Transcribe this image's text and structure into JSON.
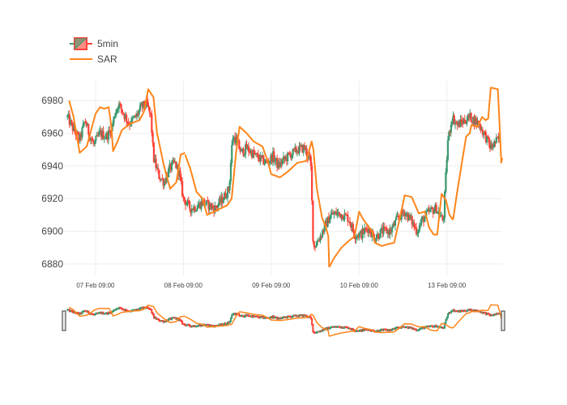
{
  "chart_data": {
    "type": "candlestick",
    "legend": [
      {
        "name": "5min",
        "kind": "candlestick",
        "color_up": "#3d9970",
        "color_down": "#ff4136"
      },
      {
        "name": "SAR",
        "kind": "line",
        "color": "#ff851b"
      }
    ],
    "legend_position": "top-left",
    "y_ticks": [
      6880,
      6900,
      6920,
      6940,
      6960,
      6980
    ],
    "ylim": [
      6873,
      6992
    ],
    "x_ticks": [
      {
        "day": 1,
        "label": "07 Feb 09:00"
      },
      {
        "day": 2,
        "label": "08 Feb 09:00"
      },
      {
        "day": 3,
        "label": "09 Feb 09:00"
      },
      {
        "day": 4,
        "label": "10 Feb 09:00"
      },
      {
        "day": 5,
        "label": "13 Feb 09:00"
      }
    ],
    "xlim_days": [
      0.65,
      5.63
    ],
    "grid": true,
    "range_slider": true,
    "price_keypoints": [
      [
        0.68,
        6970
      ],
      [
        0.75,
        6962
      ],
      [
        0.82,
        6956
      ],
      [
        0.88,
        6968
      ],
      [
        0.93,
        6959
      ],
      [
        0.98,
        6953
      ],
      [
        1.05,
        6960
      ],
      [
        1.12,
        6958
      ],
      [
        1.18,
        6962
      ],
      [
        1.22,
        6972
      ],
      [
        1.26,
        6978
      ],
      [
        1.3,
        6974
      ],
      [
        1.38,
        6966
      ],
      [
        1.46,
        6970
      ],
      [
        1.52,
        6976
      ],
      [
        1.58,
        6978
      ],
      [
        1.63,
        6970
      ],
      [
        1.66,
        6945
      ],
      [
        1.72,
        6934
      ],
      [
        1.78,
        6930
      ],
      [
        1.84,
        6938
      ],
      [
        1.9,
        6942
      ],
      [
        1.95,
        6936
      ],
      [
        2.0,
        6920
      ],
      [
        2.08,
        6914
      ],
      [
        2.15,
        6915
      ],
      [
        2.22,
        6918
      ],
      [
        2.28,
        6916
      ],
      [
        2.36,
        6914
      ],
      [
        2.45,
        6920
      ],
      [
        2.52,
        6926
      ],
      [
        2.56,
        6958
      ],
      [
        2.6,
        6956
      ],
      [
        2.66,
        6948
      ],
      [
        2.72,
        6951
      ],
      [
        2.8,
        6947
      ],
      [
        2.88,
        6944
      ],
      [
        2.95,
        6942
      ],
      [
        3.02,
        6946
      ],
      [
        3.08,
        6940
      ],
      [
        3.15,
        6944
      ],
      [
        3.22,
        6947
      ],
      [
        3.3,
        6950
      ],
      [
        3.38,
        6951
      ],
      [
        3.45,
        6942
      ],
      [
        3.48,
        6890
      ],
      [
        3.55,
        6896
      ],
      [
        3.62,
        6904
      ],
      [
        3.68,
        6910
      ],
      [
        3.75,
        6911
      ],
      [
        3.82,
        6910
      ],
      [
        3.88,
        6908
      ],
      [
        3.95,
        6898
      ],
      [
        4.02,
        6898
      ],
      [
        4.1,
        6902
      ],
      [
        4.18,
        6896
      ],
      [
        4.26,
        6900
      ],
      [
        4.36,
        6900
      ],
      [
        4.44,
        6908
      ],
      [
        4.52,
        6912
      ],
      [
        4.6,
        6906
      ],
      [
        4.66,
        6900
      ],
      [
        4.72,
        6907
      ],
      [
        4.8,
        6912
      ],
      [
        4.88,
        6914
      ],
      [
        4.96,
        6906
      ],
      [
        5.01,
        6955
      ],
      [
        5.06,
        6970
      ],
      [
        5.12,
        6965
      ],
      [
        5.18,
        6967
      ],
      [
        5.26,
        6970
      ],
      [
        5.36,
        6966
      ],
      [
        5.44,
        6958
      ],
      [
        5.5,
        6951
      ],
      [
        5.56,
        6955
      ],
      [
        5.61,
        6957
      ]
    ],
    "sar_segments": [
      [
        [
          0.7,
          6980
        ],
        [
          0.75,
          6970
        ],
        [
          0.82,
          6948
        ],
        [
          0.9,
          6952
        ],
        [
          1.0,
          6972
        ],
        [
          1.05,
          6976
        ],
        [
          1.1,
          6975
        ],
        [
          1.15,
          6976
        ],
        [
          1.18,
          6964
        ],
        [
          1.2,
          6949
        ],
        [
          1.25,
          6955
        ],
        [
          1.3,
          6962
        ],
        [
          1.4,
          6966
        ],
        [
          1.5,
          6968
        ],
        [
          1.55,
          6973
        ],
        [
          1.6,
          6987
        ],
        [
          1.66,
          6982
        ],
        [
          1.7,
          6960
        ],
        [
          1.78,
          6940
        ],
        [
          1.85,
          6926
        ],
        [
          1.92,
          6930
        ],
        [
          1.97,
          6947
        ],
        [
          2.02,
          6948
        ]
      ],
      [
        [
          2.02,
          6947
        ],
        [
          2.08,
          6938
        ],
        [
          2.15,
          6924
        ],
        [
          2.22,
          6920
        ],
        [
          2.27,
          6910
        ],
        [
          2.35,
          6912
        ],
        [
          2.5,
          6916
        ],
        [
          2.55,
          6920
        ],
        [
          2.6,
          6948
        ],
        [
          2.64,
          6964
        ],
        [
          2.72,
          6960
        ],
        [
          2.8,
          6955
        ],
        [
          2.9,
          6952
        ],
        [
          2.96,
          6943
        ],
        [
          3.0,
          6935
        ],
        [
          3.1,
          6933
        ],
        [
          3.2,
          6937
        ],
        [
          3.3,
          6942
        ],
        [
          3.4,
          6943
        ],
        [
          3.46,
          6955
        ],
        [
          3.48,
          6950
        ],
        [
          3.52,
          6926
        ],
        [
          3.58,
          6908
        ],
        [
          3.62,
          6903
        ],
        [
          3.65,
          6897
        ],
        [
          3.66,
          6878
        ]
      ],
      [
        [
          3.66,
          6878
        ],
        [
          3.72,
          6884
        ],
        [
          3.8,
          6890
        ],
        [
          3.88,
          6894
        ],
        [
          3.95,
          6897
        ],
        [
          4.0,
          6912
        ],
        [
          4.05,
          6907
        ],
        [
          4.15,
          6900
        ],
        [
          4.18,
          6893
        ],
        [
          4.26,
          6891
        ],
        [
          4.32,
          6892
        ],
        [
          4.4,
          6893
        ],
        [
          4.46,
          6907
        ],
        [
          4.52,
          6922
        ],
        [
          4.6,
          6921
        ],
        [
          4.68,
          6911
        ],
        [
          4.75,
          6912
        ],
        [
          4.8,
          6902
        ],
        [
          4.85,
          6898
        ],
        [
          4.89,
          6898
        ],
        [
          4.94,
          6923
        ],
        [
          4.99,
          6919
        ],
        [
          5.03,
          6910
        ],
        [
          5.07,
          6907
        ]
      ],
      [
        [
          5.07,
          6907
        ],
        [
          5.12,
          6925
        ],
        [
          5.18,
          6945
        ],
        [
          5.22,
          6958
        ],
        [
          5.26,
          6960
        ],
        [
          5.28,
          6965
        ],
        [
          5.35,
          6964
        ],
        [
          5.4,
          6970
        ],
        [
          5.44,
          6968
        ],
        [
          5.47,
          6969
        ],
        [
          5.5,
          6988
        ],
        [
          5.58,
          6987
        ],
        [
          5.6,
          6966
        ],
        [
          5.62,
          6942
        ],
        [
          5.63,
          6945
        ]
      ]
    ]
  }
}
